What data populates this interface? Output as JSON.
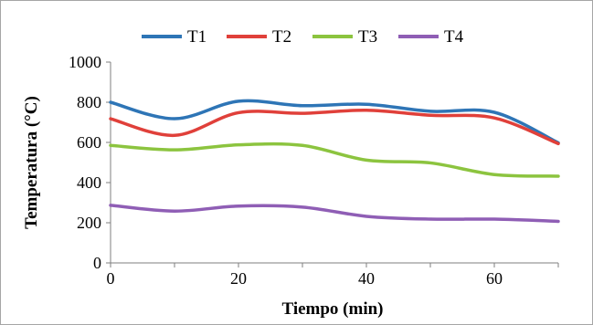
{
  "chart_data": {
    "type": "line",
    "xlabel": "Tiempo (min)",
    "ylabel": "Temperatura (°C)",
    "xlim": [
      0,
      70
    ],
    "ylim": [
      0,
      1000
    ],
    "xticks": [
      0,
      20,
      40,
      60
    ],
    "yticks": [
      0,
      200,
      400,
      600,
      800,
      1000
    ],
    "grid": false,
    "legend_position": "top",
    "x": [
      0,
      10,
      20,
      30,
      40,
      50,
      60,
      70
    ],
    "series": [
      {
        "name": "T1",
        "color": "#2e75b6",
        "values": [
          800,
          718,
          805,
          783,
          790,
          755,
          750,
          598
        ]
      },
      {
        "name": "T2",
        "color": "#e0403a",
        "values": [
          718,
          635,
          748,
          745,
          760,
          735,
          722,
          594
        ]
      },
      {
        "name": "T3",
        "color": "#8cc43f",
        "values": [
          585,
          563,
          588,
          585,
          512,
          498,
          440,
          432
        ]
      },
      {
        "name": "T4",
        "color": "#8f5eb5",
        "values": [
          287,
          258,
          283,
          278,
          232,
          218,
          218,
          207
        ]
      }
    ]
  }
}
